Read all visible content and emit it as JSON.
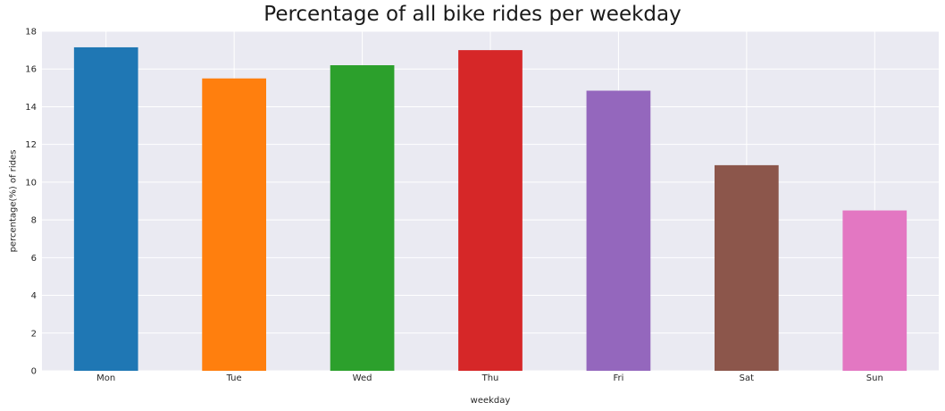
{
  "chart_data": {
    "type": "bar",
    "title": "Percentage of all bike rides per weekday",
    "xlabel": "weekday",
    "ylabel": "percentage(%) of rides",
    "categories": [
      "Mon",
      "Tue",
      "Wed",
      "Thu",
      "Fri",
      "Sat",
      "Sun"
    ],
    "values": [
      17.15,
      15.5,
      16.2,
      17.0,
      14.85,
      10.9,
      8.5
    ],
    "colors": [
      "#1f77b4",
      "#ff7f0e",
      "#2ca02c",
      "#d62728",
      "#9467bd",
      "#8c564b",
      "#e377c2"
    ],
    "ylim": [
      0,
      18
    ],
    "yticks": [
      0,
      2,
      4,
      6,
      8,
      10,
      12,
      14,
      16,
      18
    ],
    "grid": true,
    "background": "#eaeaf2",
    "grid_color": "#ffffff"
  }
}
